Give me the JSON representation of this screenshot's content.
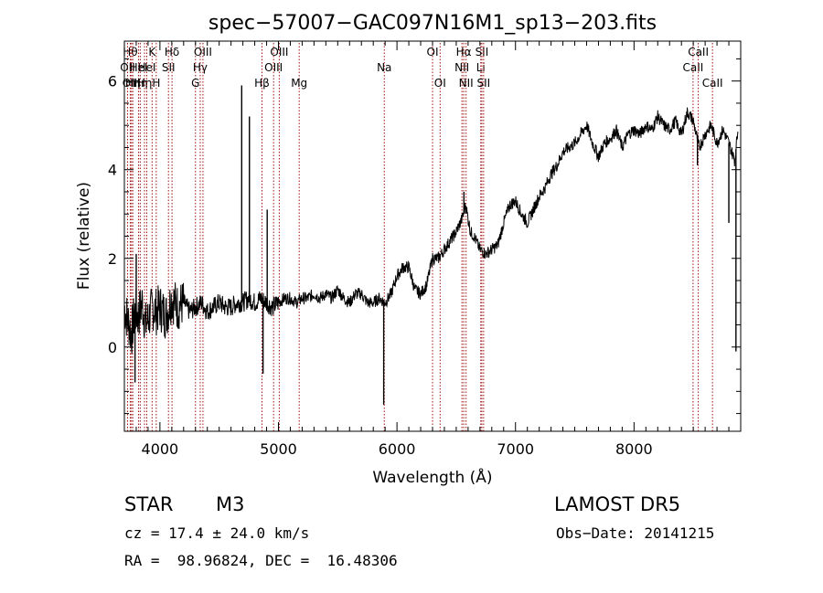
{
  "chart_data": {
    "type": "line",
    "title": "spec−57007−GAC097N16M1_sp13−203.fits",
    "xlabel": "Wavelength (Å)",
    "ylabel": "Flux (relative)",
    "xlim": [
      3700,
      8900
    ],
    "ylim": [
      -1.9,
      6.9
    ],
    "xticks": [
      4000,
      5000,
      6000,
      7000,
      8000
    ],
    "yticks": [
      0,
      2,
      4,
      6
    ],
    "grid": false,
    "line_color": "#000000",
    "marker_color": "#a01010",
    "series": [
      {
        "x": [
          3700,
          3730,
          3760,
          3790,
          3820,
          3850,
          3880,
          3910,
          3940,
          3970,
          4000,
          4050,
          4100,
          4150,
          4200,
          4250,
          4300,
          4350,
          4400,
          4450,
          4500,
          4550,
          4600,
          4650,
          4700,
          4750,
          4800,
          4850,
          4900,
          4950,
          5000,
          5050,
          5100,
          5150,
          5200,
          5250,
          5300,
          5350,
          5400,
          5450,
          5500,
          5550,
          5600,
          5650,
          5700,
          5750,
          5800,
          5850,
          5900,
          5950,
          6000,
          6050,
          6100,
          6150,
          6200,
          6250,
          6300,
          6350,
          6400,
          6450,
          6500,
          6550,
          6580,
          6620,
          6650,
          6700,
          6750,
          6800,
          6850,
          6900,
          6950,
          7000,
          7050,
          7100,
          7150,
          7200,
          7250,
          7300,
          7350,
          7400,
          7450,
          7500,
          7550,
          7600,
          7650,
          7700,
          7750,
          7800,
          7850,
          7900,
          7950,
          8000,
          8050,
          8100,
          8150,
          8200,
          8250,
          8300,
          8350,
          8400,
          8450,
          8500,
          8550,
          8600,
          8650,
          8700,
          8750,
          8800,
          8850,
          8880
        ],
        "y": [
          0.9,
          0.6,
          0.3,
          0.8,
          0.7,
          1.0,
          0.5,
          0.7,
          0.9,
          0.8,
          0.9,
          0.7,
          1.1,
          0.9,
          1.0,
          0.8,
          0.9,
          1.0,
          0.8,
          0.9,
          1.0,
          0.9,
          0.9,
          1.0,
          1.0,
          1.1,
          1.0,
          1.1,
          1.0,
          0.9,
          1.0,
          1.1,
          1.1,
          1.0,
          1.1,
          1.1,
          1.2,
          1.1,
          1.2,
          1.1,
          1.3,
          1.1,
          1.0,
          1.2,
          1.2,
          1.0,
          1.0,
          1.1,
          1.0,
          1.2,
          1.6,
          1.8,
          1.8,
          1.3,
          1.2,
          1.4,
          2.0,
          2.0,
          2.2,
          2.4,
          2.6,
          2.9,
          3.2,
          2.6,
          2.5,
          2.2,
          2.1,
          2.2,
          2.3,
          2.8,
          3.2,
          3.3,
          3.0,
          2.8,
          3.1,
          3.4,
          3.6,
          3.9,
          4.1,
          4.4,
          4.5,
          4.6,
          4.8,
          5.0,
          4.6,
          4.3,
          4.6,
          4.7,
          4.9,
          4.5,
          4.8,
          4.9,
          4.8,
          5.0,
          4.9,
          5.2,
          5.0,
          4.9,
          5.1,
          4.8,
          5.3,
          5.1,
          4.5,
          4.8,
          5.0,
          4.6,
          4.9,
          4.6,
          4.2,
          5.0
        ]
      }
    ],
    "spikes": [
      {
        "x": 3790,
        "y": -0.8
      },
      {
        "x": 3800,
        "y": 2.1
      },
      {
        "x": 4690,
        "y": 5.9
      },
      {
        "x": 4755,
        "y": 5.2
      },
      {
        "x": 4870,
        "y": -0.6
      },
      {
        "x": 4905,
        "y": 3.1
      },
      {
        "x": 5888,
        "y": -1.3
      },
      {
        "x": 6565,
        "y": 3.5
      },
      {
        "x": 8535,
        "y": 4.1
      },
      {
        "x": 8800,
        "y": 2.8
      },
      {
        "x": 8860,
        "y": -0.1
      }
    ],
    "lines": [
      {
        "x": 3727,
        "labels": [
          "OII"
        ],
        "row": 2
      },
      {
        "x": 3750,
        "labels": [
          "Hθ"
        ],
        "row": 1
      },
      {
        "x": 3760,
        "labels": [
          "OIII"
        ],
        "row": 3
      },
      {
        "x": 3771,
        "labels": [
          "Hη"
        ],
        "row": 3
      },
      {
        "x": 3820,
        "labels": [
          "HeI"
        ],
        "row": 2
      },
      {
        "x": 3834,
        "labels": [
          "Hη"
        ],
        "row": 3
      },
      {
        "x": 3870,
        "labels": [
          "Hη"
        ],
        "row": 3
      },
      {
        "x": 3889,
        "labels": [
          "HeI"
        ],
        "row": 2
      },
      {
        "x": 3934,
        "labels": [
          "K"
        ],
        "row": 1
      },
      {
        "x": 3969,
        "labels": [
          "H"
        ],
        "row": 3
      },
      {
        "x": 4072,
        "labels": [
          "SII"
        ],
        "row": 2
      },
      {
        "x": 4102,
        "labels": [
          "Hδ"
        ],
        "row": 1
      },
      {
        "x": 4300,
        "labels": [
          "G"
        ],
        "row": 3
      },
      {
        "x": 4340,
        "labels": [
          "Hγ"
        ],
        "row": 2
      },
      {
        "x": 4363,
        "labels": [
          "OIII"
        ],
        "row": 1
      },
      {
        "x": 4861,
        "labels": [
          "Hβ"
        ],
        "row": 3
      },
      {
        "x": 4959,
        "labels": [
          "OIII"
        ],
        "row": 2
      },
      {
        "x": 5007,
        "labels": [
          "OIII"
        ],
        "row": 1
      },
      {
        "x": 5175,
        "labels": [
          "Mg"
        ],
        "row": 3
      },
      {
        "x": 5893,
        "labels": [
          "Na"
        ],
        "row": 2
      },
      {
        "x": 6300,
        "labels": [
          "OI"
        ],
        "row": 1
      },
      {
        "x": 6364,
        "labels": [
          "OI"
        ],
        "row": 3
      },
      {
        "x": 6548,
        "labels": [
          "NII"
        ],
        "row": 2
      },
      {
        "x": 6563,
        "labels": [
          "Hα"
        ],
        "row": 1
      },
      {
        "x": 6583,
        "labels": [
          "NII"
        ],
        "row": 3
      },
      {
        "x": 6707,
        "labels": [
          "Li"
        ],
        "row": 2
      },
      {
        "x": 6716,
        "labels": [
          "SII"
        ],
        "row": 1
      },
      {
        "x": 6731,
        "labels": [
          "SII"
        ],
        "row": 3
      },
      {
        "x": 8498,
        "labels": [
          "CaII"
        ],
        "row": 2
      },
      {
        "x": 8542,
        "labels": [
          "CaII"
        ],
        "row": 1
      },
      {
        "x": 8662,
        "labels": [
          "CaII"
        ],
        "row": 3
      }
    ]
  },
  "info": {
    "object_class": "STAR",
    "subclass": "M3",
    "survey": "LAMOST DR5",
    "cz": "cz = 17.4 ± 24.0 km/s",
    "obs_date": "Obs−Date: 20141215",
    "coords": "RA =  98.96824, DEC =  16.48306"
  }
}
